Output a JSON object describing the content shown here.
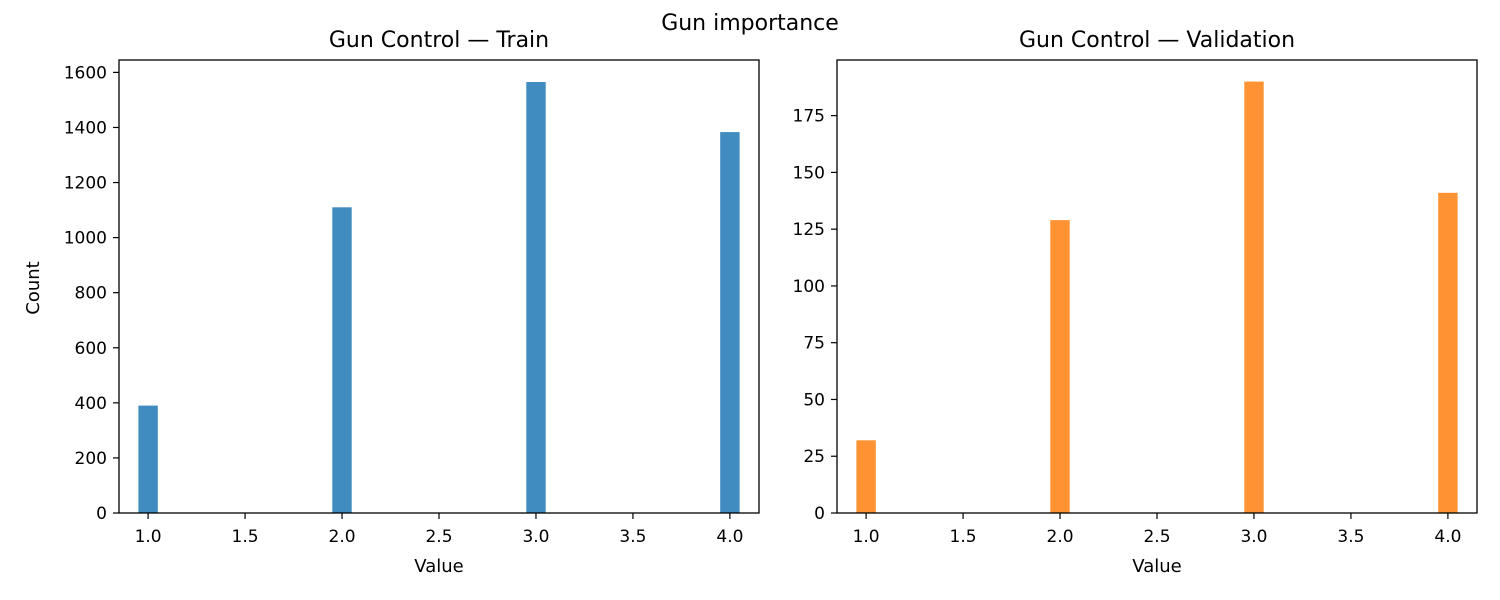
{
  "figure": {
    "suptitle": "Gun importance"
  },
  "chart_data": [
    {
      "type": "bar",
      "title": "Gun Control — Train",
      "xlabel": "Value",
      "ylabel": "Count",
      "color": "#1f77b4",
      "xlim": [
        0.85,
        4.15
      ],
      "ylim": [
        0,
        1645
      ],
      "xticks": [
        1.0,
        1.5,
        2.0,
        2.5,
        3.0,
        3.5,
        4.0
      ],
      "xtick_labels": [
        "1.0",
        "1.5",
        "2.0",
        "2.5",
        "3.0",
        "3.5",
        "4.0"
      ],
      "yticks": [
        0,
        200,
        400,
        600,
        800,
        1000,
        1200,
        1400,
        1600
      ],
      "ytick_labels": [
        "0",
        "200",
        "400",
        "600",
        "800",
        "1000",
        "1200",
        "1400",
        "1600"
      ],
      "bins": [
        1.0,
        2.0,
        3.0,
        4.0
      ],
      "bar_width": 0.1,
      "values": [
        390,
        1110,
        1565,
        1383
      ]
    },
    {
      "type": "bar",
      "title": "Gun Control — Validation",
      "xlabel": "Value",
      "ylabel": "",
      "color": "#ff7f0e",
      "xlim": [
        0.85,
        4.15
      ],
      "ylim": [
        0,
        199.5
      ],
      "xticks": [
        1.0,
        1.5,
        2.0,
        2.5,
        3.0,
        3.5,
        4.0
      ],
      "xtick_labels": [
        "1.0",
        "1.5",
        "2.0",
        "2.5",
        "3.0",
        "3.5",
        "4.0"
      ],
      "yticks": [
        0,
        25,
        50,
        75,
        100,
        125,
        150,
        175
      ],
      "ytick_labels": [
        "0",
        "25",
        "50",
        "75",
        "100",
        "125",
        "150",
        "175"
      ],
      "bins": [
        1.0,
        2.0,
        3.0,
        4.0
      ],
      "bar_width": 0.1,
      "values": [
        32,
        129,
        190,
        141
      ]
    }
  ]
}
